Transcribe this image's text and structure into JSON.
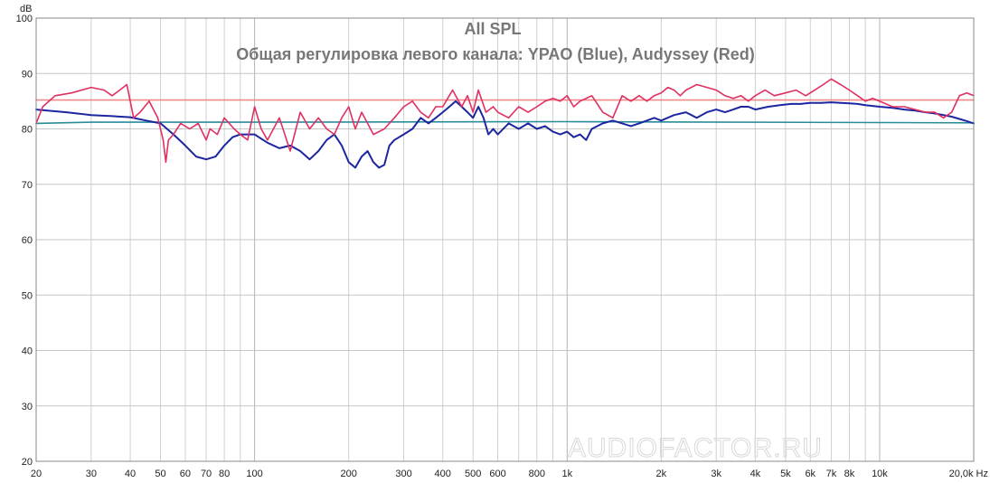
{
  "chart_data": {
    "type": "line",
    "title": "All SPL",
    "subtitle": "Общая регулировка левого канала: YPAO (Blue), Audyssey (Red)",
    "ylabel": "dB",
    "xunit": "Hz",
    "xscale": "log",
    "xlim": [
      20,
      20000
    ],
    "ylim": [
      20,
      100
    ],
    "grid": true,
    "watermark": "AUDIOFACTOR.RU",
    "ytick_labels": [
      "100",
      "90",
      "80",
      "70",
      "60",
      "50",
      "40",
      "30",
      "20"
    ],
    "ytick_values": [
      100,
      90,
      80,
      70,
      60,
      50,
      40,
      30,
      20
    ],
    "xtick_labels": [
      "20",
      "30",
      "40",
      "50",
      "60",
      "70",
      "80",
      "100",
      "200",
      "300",
      "400",
      "500",
      "600",
      "800",
      "1k",
      "2k",
      "3k",
      "4k",
      "5k",
      "6k",
      "7k",
      "8k",
      "10k",
      "20,0k Hz"
    ],
    "xtick_values": [
      20,
      30,
      40,
      50,
      60,
      70,
      80,
      100,
      200,
      300,
      400,
      500,
      600,
      800,
      1000,
      2000,
      3000,
      4000,
      5000,
      6000,
      7000,
      8000,
      10000,
      20000
    ],
    "series": [
      {
        "color": "#e03060",
        "width": 1.6,
        "x": [
          20,
          21,
          23,
          26,
          30,
          33,
          35,
          37,
          39,
          41,
          43,
          46,
          49,
          51,
          52,
          53,
          55,
          58,
          62,
          66,
          70,
          72,
          76,
          80,
          86,
          90,
          95,
          100,
          105,
          110,
          120,
          130,
          140,
          150,
          160,
          170,
          180,
          190,
          200,
          210,
          220,
          230,
          240,
          260,
          280,
          300,
          320,
          340,
          360,
          380,
          400,
          430,
          460,
          480,
          500,
          520,
          550,
          580,
          600,
          650,
          700,
          750,
          800,
          850,
          900,
          950,
          1000,
          1050,
          1100,
          1200,
          1300,
          1400,
          1500,
          1600,
          1700,
          1800,
          1900,
          2000,
          2100,
          2200,
          2300,
          2400,
          2600,
          2800,
          3000,
          3200,
          3400,
          3600,
          3800,
          4000,
          4300,
          4600,
          5000,
          5400,
          5800,
          6200,
          6600,
          7000,
          7500,
          8000,
          8500,
          9000,
          9500,
          10000,
          11000,
          12000,
          13000,
          14000,
          15000,
          16000,
          17000,
          18000,
          19000,
          20000
        ],
        "y": [
          81,
          84,
          86,
          86.5,
          87.5,
          87,
          86,
          87,
          88,
          82,
          83,
          85,
          82,
          78,
          74,
          78,
          79,
          81,
          80,
          81,
          78,
          80,
          79,
          82,
          80,
          79,
          78,
          84,
          80,
          78,
          82,
          76,
          83,
          80,
          82,
          80,
          79,
          82,
          84,
          80,
          83,
          81,
          79,
          80,
          82,
          84,
          85,
          83,
          82,
          84,
          84,
          87,
          84,
          86,
          83,
          87,
          83,
          84,
          83,
          82,
          84,
          83,
          84,
          85,
          85.5,
          85,
          86,
          84,
          85,
          86,
          83,
          82,
          86,
          85,
          86,
          85,
          86,
          86.5,
          87.5,
          87,
          86,
          87,
          88,
          87.5,
          87,
          86,
          85.5,
          86,
          85,
          86,
          87,
          86,
          86.5,
          87,
          86,
          87,
          88,
          89,
          88,
          87,
          86,
          85,
          85.5,
          85,
          84,
          84,
          83.5,
          83,
          83,
          82,
          83,
          86,
          86.5,
          86
        ]
      },
      {
        "color": "#1c26a0",
        "width": 2,
        "x": [
          20,
          25,
          30,
          35,
          40,
          45,
          50,
          55,
          60,
          65,
          70,
          75,
          80,
          85,
          90,
          100,
          110,
          120,
          130,
          140,
          150,
          160,
          170,
          180,
          190,
          200,
          210,
          220,
          230,
          240,
          250,
          260,
          270,
          280,
          300,
          320,
          340,
          360,
          380,
          400,
          420,
          440,
          460,
          480,
          500,
          520,
          540,
          560,
          580,
          600,
          650,
          700,
          750,
          800,
          850,
          900,
          950,
          1000,
          1050,
          1100,
          1150,
          1200,
          1300,
          1400,
          1500,
          1600,
          1700,
          1800,
          1900,
          2000,
          2200,
          2400,
          2600,
          2800,
          3000,
          3200,
          3400,
          3600,
          3800,
          4000,
          4400,
          4800,
          5200,
          5600,
          6000,
          6500,
          7000,
          7500,
          8000,
          8500,
          9000,
          10000,
          11000,
          12000,
          13000,
          14000,
          15000,
          16000,
          17000,
          18000,
          19000,
          20000
        ],
        "y": [
          83.5,
          83,
          82.5,
          82.3,
          82.1,
          81.5,
          81,
          79,
          77,
          75,
          74.5,
          75,
          77,
          78.5,
          79,
          79,
          77.5,
          76.5,
          77,
          76,
          74.5,
          76,
          78,
          79,
          77,
          74,
          73,
          75,
          76,
          74,
          73,
          73.5,
          77,
          78,
          79,
          80,
          82,
          81,
          82,
          83,
          84,
          85,
          84,
          83,
          82,
          84,
          82,
          79,
          80,
          79,
          81,
          80,
          81,
          80,
          80.5,
          79.5,
          79,
          79.5,
          78.5,
          79,
          78,
          80,
          81,
          81.5,
          81,
          80.5,
          81,
          81.5,
          82,
          81.5,
          82.5,
          83,
          82,
          83,
          83.5,
          83,
          83.5,
          84,
          84,
          83.5,
          84,
          84.3,
          84.5,
          84.5,
          84.7,
          84.7,
          84.8,
          84.7,
          84.6,
          84.5,
          84.3,
          84,
          83.8,
          83.5,
          83.3,
          83,
          82.8,
          82.5,
          82.2,
          81.8,
          81.4,
          81
        ]
      },
      {
        "color": "#f08a8a",
        "width": 1.6,
        "x": [
          20,
          20000
        ],
        "y": [
          85.2,
          85.2
        ]
      },
      {
        "color": "#2a8c9a",
        "width": 1.6,
        "x": [
          20,
          30,
          100,
          1000,
          20000
        ],
        "y": [
          81,
          81.2,
          81.2,
          81.3,
          81.1
        ]
      }
    ]
  }
}
